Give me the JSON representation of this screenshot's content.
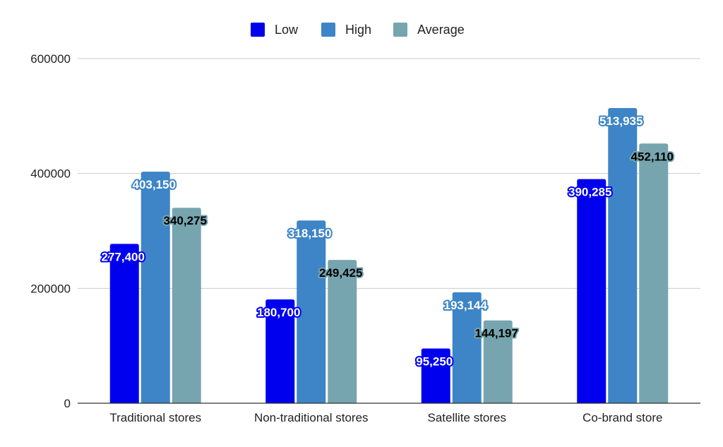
{
  "chart_data": {
    "type": "bar",
    "categories": [
      "Traditional stores",
      "Non-traditional stores",
      "Satellite stores",
      "Co-brand store"
    ],
    "series": [
      {
        "name": "Low",
        "values": [
          277400,
          180700,
          95250,
          390285
        ],
        "labels": [
          "277,400",
          "180,700",
          "95,250",
          "390,285"
        ]
      },
      {
        "name": "High",
        "values": [
          403150,
          318150,
          193144,
          513935
        ],
        "labels": [
          "403,150",
          "318,150",
          "193,144",
          "513,935"
        ]
      },
      {
        "name": "Average",
        "values": [
          340275,
          249425,
          144197,
          452110
        ],
        "labels": [
          "340,275",
          "249,425",
          "144,197",
          "452,110"
        ]
      }
    ],
    "yticks": [
      "0",
      "200000",
      "400000",
      "600000"
    ],
    "ylim": [
      0,
      600000
    ],
    "grid": true,
    "legend_position": "top-center",
    "title": "",
    "xlabel": "",
    "ylabel": ""
  },
  "colors": {
    "series": [
      "#0000ee",
      "#3d85c6",
      "#76a5af"
    ],
    "label_fill": [
      "#ffffff",
      "#ffffff",
      "#000000"
    ],
    "label_stroke": [
      "#0000ee",
      "#3d85c6",
      "#76a5af"
    ],
    "grid": "#cccccc",
    "axis": "#333333"
  }
}
